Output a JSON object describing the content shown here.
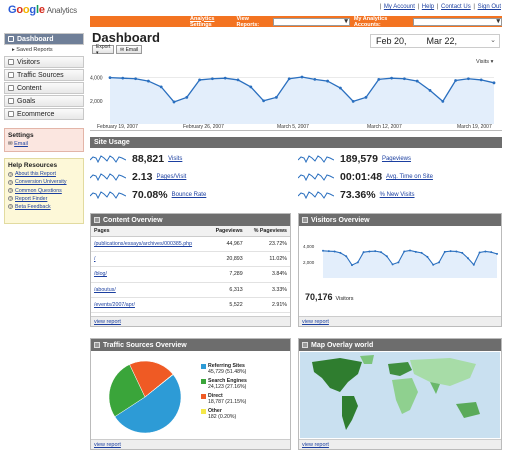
{
  "header": {
    "logo_google": [
      "G",
      "o",
      "o",
      "g",
      "l",
      "e"
    ],
    "logo_product": "Analytics",
    "top_links": [
      "My Account",
      "Help",
      "Contact Us",
      "Sign Out"
    ],
    "analytics_settings": "Analytics Settings",
    "view_reports_label": "View Reports:",
    "my_accounts_label": "My Analytics Accounts:"
  },
  "sidebar": {
    "items": [
      {
        "label": "Dashboard",
        "active": true
      },
      {
        "label": "Visitors"
      },
      {
        "label": "Traffic Sources"
      },
      {
        "label": "Content"
      },
      {
        "label": "Goals"
      },
      {
        "label": "Ecommerce"
      }
    ],
    "saved_reports": "Saved Reports",
    "settings_title": "Settings",
    "settings_email": "Email",
    "help_title": "Help Resources",
    "help_items": [
      "About this Report",
      "Conversion University",
      "Common Questions",
      "Report Finder",
      "Beta Feedback"
    ]
  },
  "dashboard": {
    "title": "Dashboard",
    "export_label": "Export ▾",
    "email_label": "Email",
    "date_start": "Feb 20,",
    "date_end": "Mar 22,",
    "metric_select": "Visits ▾"
  },
  "main_chart": {
    "y_ticks": [
      "4,000",
      "2,000"
    ],
    "x_labels": [
      "February 19, 2007",
      "February 26, 2007",
      "March 5, 2007",
      "March 12, 2007",
      "March 19, 2007"
    ]
  },
  "chart_data": {
    "type": "area",
    "x": [
      "Feb 20",
      "Feb 21",
      "Feb 22",
      "Feb 23",
      "Feb 24",
      "Feb 25",
      "Feb 26",
      "Feb 27",
      "Feb 28",
      "Mar 1",
      "Mar 2",
      "Mar 3",
      "Mar 4",
      "Mar 5",
      "Mar 6",
      "Mar 7",
      "Mar 8",
      "Mar 9",
      "Mar 10",
      "Mar 11",
      "Mar 12",
      "Mar 13",
      "Mar 14",
      "Mar 15",
      "Mar 16",
      "Mar 17",
      "Mar 18",
      "Mar 19",
      "Mar 20",
      "Mar 21",
      "Mar 22"
    ],
    "series": [
      {
        "values": [
          4000,
          3950,
          3900,
          3700,
          3200,
          1900,
          2300,
          3800,
          3900,
          3950,
          3800,
          3200,
          2000,
          2300,
          3900,
          4050,
          3850,
          3700,
          3100,
          1950,
          2300,
          3850,
          3950,
          3900,
          3700,
          2900,
          1950,
          3750,
          3900,
          3800,
          3550
        ]
      }
    ],
    "ylim": [
      0,
      5000
    ],
    "title": "",
    "xlabel": "",
    "ylabel": ""
  },
  "site_usage": {
    "title": "Site Usage",
    "metrics": [
      {
        "value": "88,821",
        "label": "Visits"
      },
      {
        "value": "189,579",
        "label": "Pageviews"
      },
      {
        "value": "2.13",
        "label": "Pages/Visit"
      },
      {
        "value": "00:01:48",
        "label": "Avg. Time on Site"
      },
      {
        "value": "70.08%",
        "label": "Bounce Rate"
      },
      {
        "value": "73.36%",
        "label": "% New Visits"
      }
    ]
  },
  "content_overview": {
    "title": "Content Overview",
    "headers": [
      "Pages",
      "Pageviews",
      "% Pageviews"
    ],
    "rows": [
      [
        "/publications/essays/archives/000385.php",
        "44,967",
        "23.72%"
      ],
      [
        "/",
        "20,893",
        "11.02%"
      ],
      [
        "/blog/",
        "7,289",
        "3.84%"
      ],
      [
        "/aboutus/",
        "6,313",
        "3.33%"
      ],
      [
        "/events/2007/apr/",
        "5,522",
        "2.91%"
      ]
    ],
    "footer": "view report"
  },
  "visitors_overview": {
    "title": "Visitors Overview",
    "y_ticks": [
      "4,000",
      "2,000"
    ],
    "total": "70,176",
    "total_label": "Visitors",
    "footer": "view report"
  },
  "traffic_sources": {
    "title": "Traffic Sources Overview",
    "slices": [
      {
        "name": "Referring Sites",
        "value": "45,729 (51.48%)",
        "pct": 51.48,
        "color": "#2d9bd6"
      },
      {
        "name": "Search Engines",
        "value": "24,123 (27.16%)",
        "pct": 27.16,
        "color": "#3aa53a"
      },
      {
        "name": "Direct",
        "value": "18,787 (21.15%)",
        "pct": 21.15,
        "color": "#ef5a24"
      },
      {
        "name": "Other",
        "value": "182 (0.20%)",
        "pct": 0.2,
        "color": "#f5e84a"
      }
    ],
    "footer": "view report"
  },
  "map_overlay": {
    "title": "Map Overlay world",
    "footer": "view report"
  }
}
